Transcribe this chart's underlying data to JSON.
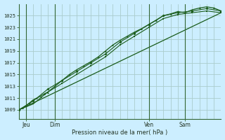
{
  "xlabel": "Pression niveau de la mer( hPa )",
  "bg_color": "#cceeff",
  "grid_color": "#aacccc",
  "line_color": "#1a5c1a",
  "axis_color": "#336633",
  "text_color": "#223322",
  "yticks": [
    1009,
    1011,
    1013,
    1015,
    1017,
    1019,
    1021,
    1023,
    1025
  ],
  "ylim": [
    1007.5,
    1027
  ],
  "xlim": [
    0,
    56
  ],
  "day_ticks": [
    2,
    10,
    36,
    46
  ],
  "day_labels": [
    "Jeu",
    "Dim",
    "Ven",
    "Sam"
  ],
  "day_vlines": [
    2,
    10,
    36,
    46
  ],
  "grid_x_step": 2,
  "series1_x": [
    0,
    1,
    2,
    3,
    4,
    5,
    6,
    7,
    8,
    10,
    12,
    14,
    16,
    18,
    20,
    22,
    24,
    26,
    28,
    30,
    32,
    34,
    36,
    38,
    40,
    42,
    44,
    46,
    48,
    50,
    52,
    54,
    56
  ],
  "series1_y": [
    1009,
    1009.3,
    1009.7,
    1010.2,
    1010.7,
    1011,
    1011.3,
    1011.7,
    1012,
    1013,
    1014,
    1015,
    1015.8,
    1016.5,
    1017.2,
    1018.0,
    1019.0,
    1020.0,
    1020.8,
    1021.5,
    1022.2,
    1022.8,
    1023.5,
    1024.2,
    1025.0,
    1025.3,
    1025.7,
    1025.5,
    1026.0,
    1026.3,
    1026.5,
    1026.3,
    1025.8
  ],
  "series2_x": [
    0,
    4,
    8,
    12,
    16,
    20,
    24,
    28,
    32,
    36,
    40,
    44,
    48,
    52,
    56
  ],
  "series2_y": [
    1009,
    1010.5,
    1012.5,
    1014.0,
    1015.5,
    1017.0,
    1018.5,
    1020.5,
    1022.0,
    1023.5,
    1025.0,
    1025.5,
    1025.8,
    1026.2,
    1025.8
  ],
  "series3_x": [
    0,
    4,
    8,
    12,
    16,
    20,
    24,
    28,
    32,
    36,
    40,
    44,
    48,
    52,
    56
  ],
  "series3_y": [
    1009,
    1010.0,
    1012.0,
    1013.5,
    1015.0,
    1016.5,
    1018.0,
    1020.0,
    1021.5,
    1023.0,
    1024.5,
    1025.2,
    1025.5,
    1025.8,
    1025.5
  ],
  "trend_x": [
    0,
    56
  ],
  "trend_y": [
    1009,
    1025.5
  ]
}
